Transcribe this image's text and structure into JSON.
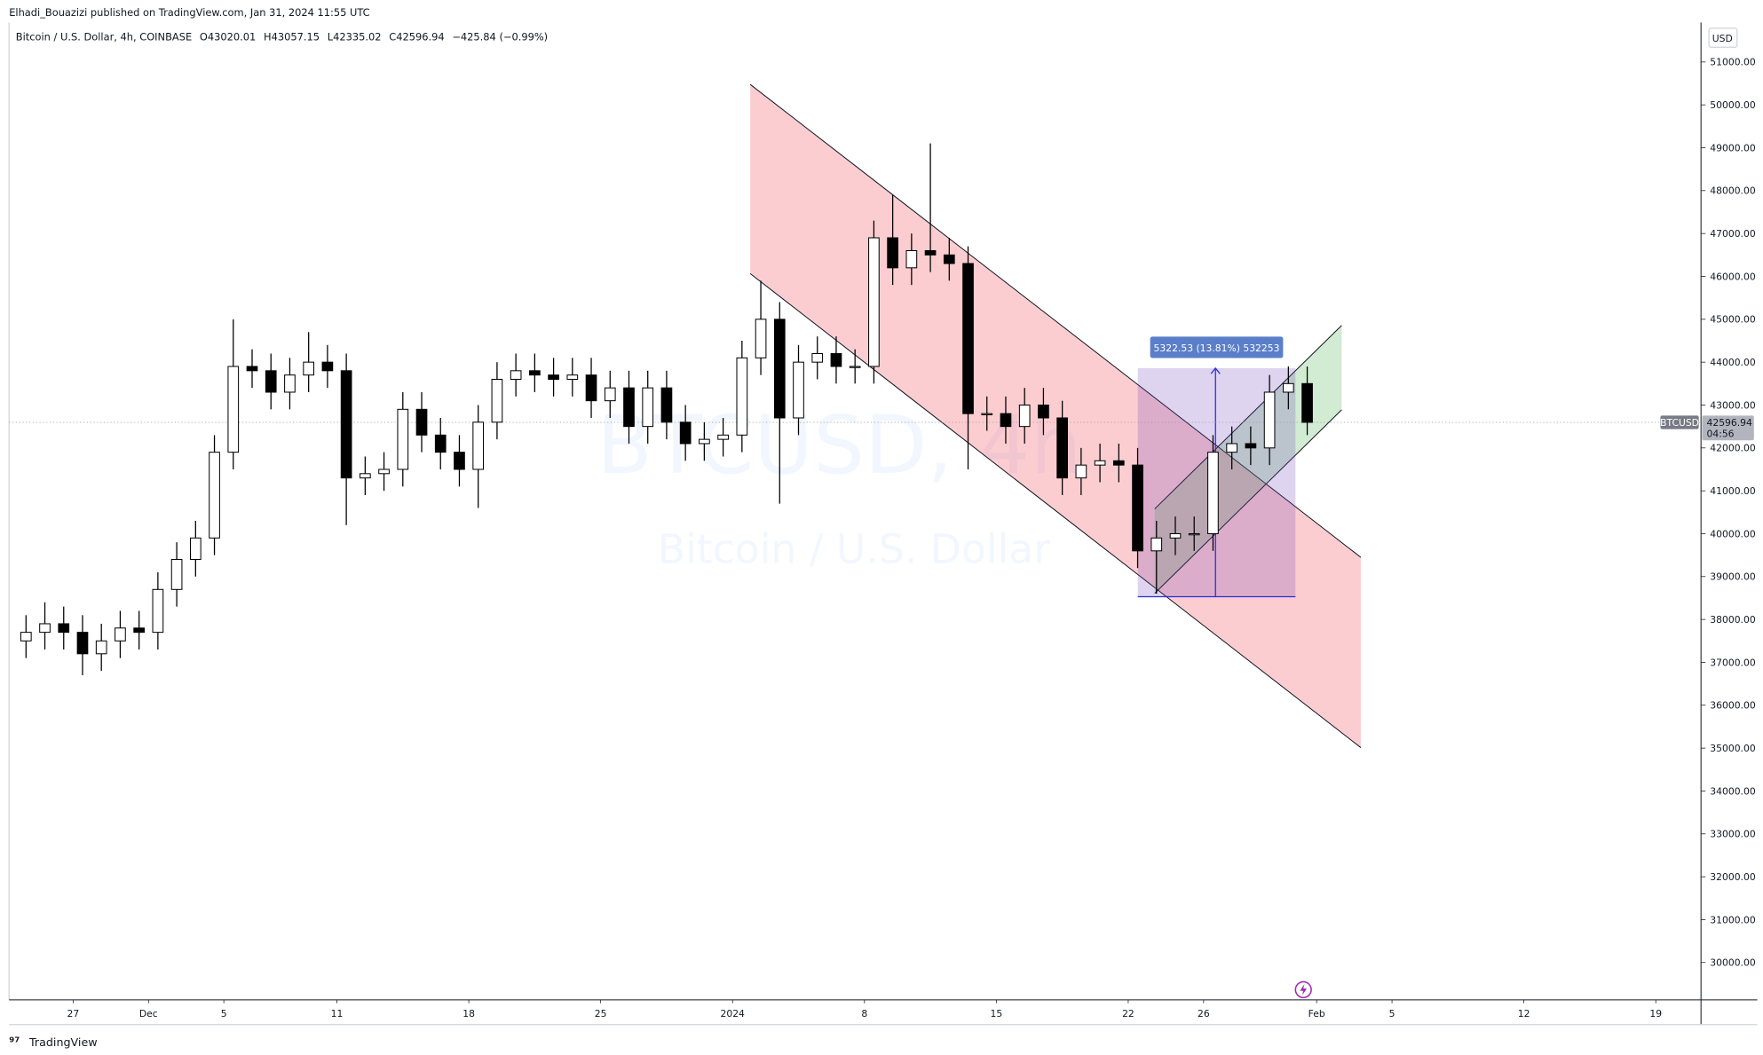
{
  "header": {
    "published": "Elhadi_Bouazizi published on TradingView.com, Jan 31, 2024 11:55 UTC",
    "symbol": "Bitcoin / U.S. Dollar, 4h, COINBASE",
    "open": "O43020.01",
    "high": "H43057.15",
    "low": "L42335.02",
    "close": "C42596.94",
    "change": "−425.84 (−0.99%)"
  },
  "watermark": {
    "ticker": "BTCUSD, 4h",
    "name": "Bitcoin / U.S. Dollar"
  },
  "currency": "USD",
  "measure_label": "5322.53 (13.81%) 532253",
  "price_label": {
    "symbol": "BTCUSD",
    "price": 42596.94,
    "countdown": "04:56"
  },
  "footer": "TradingView",
  "chart_data": {
    "type": "candlestick",
    "x": [
      -37.5,
      -36.5,
      -35.5,
      -34.5,
      -33.5,
      -32.5,
      -31.5,
      -30.5,
      -29.5,
      -28.5,
      -27.5,
      -26.5,
      -25.5,
      -24.5,
      -23.5,
      -22.5,
      -21.5,
      -20.5,
      -19.5,
      -18.5,
      -17.5,
      -16.5,
      -15.5,
      -14.5,
      -13.5,
      -12.5,
      -11.5,
      -10.5,
      -9.5,
      -8.5,
      -7.5,
      -6.5,
      -5.5,
      -4.5,
      -3.5,
      -2.5,
      -1.5,
      -0.5,
      0.5,
      1.5,
      2.5,
      3.5,
      4.5,
      5.5,
      6.5,
      7.5,
      8.5,
      9.5,
      10.5,
      11.5,
      12.5,
      13.5,
      14.5,
      15.5,
      16.5,
      17.5,
      18.5,
      19.5,
      20.5,
      21.5,
      22.5,
      23.5,
      24.5,
      25.5,
      26.5,
      27.5,
      28.5,
      29.5,
      30.5
    ],
    "open": [
      37500,
      37700,
      37900,
      37700,
      37200,
      37500,
      37800,
      37700,
      38700,
      39400,
      39900,
      41900,
      43900,
      43800,
      43300,
      43700,
      44000,
      43800,
      41300,
      41400,
      41500,
      42900,
      42300,
      41900,
      41500,
      42600,
      43600,
      43800,
      43700,
      43600,
      43700,
      43100,
      43400,
      42500,
      43400,
      42600,
      42100,
      42200,
      42300,
      44100,
      45000,
      42700,
      44000,
      44200,
      43900,
      43900,
      46900,
      46200,
      46600,
      46500,
      46300,
      42800,
      42800,
      42500,
      43000,
      42700,
      41300,
      41600,
      41700,
      41600,
      39600,
      39900,
      40000,
      40000,
      41900,
      42100,
      42000,
      43300,
      43500
    ],
    "high": [
      38100,
      38400,
      38300,
      38100,
      37900,
      38200,
      38200,
      39100,
      39800,
      40300,
      42300,
      45000,
      44300,
      44200,
      44100,
      44700,
      44400,
      44200,
      41800,
      41900,
      43300,
      43300,
      42700,
      42300,
      43000,
      44000,
      44200,
      44200,
      44100,
      44100,
      44100,
      43800,
      43800,
      43800,
      43800,
      43000,
      42600,
      42700,
      44500,
      45900,
      45400,
      44400,
      44600,
      44600,
      44300,
      47300,
      47900,
      47000,
      49100,
      46900,
      46700,
      43200,
      43200,
      43400,
      43400,
      43100,
      42000,
      42100,
      42100,
      42000,
      40300,
      40400,
      40400,
      42300,
      42500,
      42500,
      43700,
      43900,
      43900
    ],
    "low": [
      37100,
      37300,
      37300,
      36700,
      36800,
      37100,
      37300,
      37300,
      38300,
      39000,
      39500,
      41500,
      43400,
      42900,
      42900,
      43300,
      43400,
      40200,
      40900,
      41000,
      41100,
      41900,
      41500,
      41100,
      40600,
      42200,
      43200,
      43300,
      43200,
      43200,
      42700,
      42700,
      42100,
      42100,
      42200,
      41700,
      41700,
      41800,
      41900,
      43700,
      40700,
      42300,
      43600,
      43500,
      43500,
      43500,
      45800,
      45800,
      46100,
      45900,
      41500,
      42400,
      42100,
      42100,
      42300,
      40900,
      40900,
      41200,
      41200,
      39200,
      38600,
      39500,
      39600,
      39600,
      41500,
      41600,
      41600,
      42900,
      42300
    ],
    "close": [
      37700,
      37900,
      37700,
      37200,
      37500,
      37800,
      37700,
      38700,
      39400,
      39900,
      41900,
      43900,
      43800,
      43300,
      43700,
      44000,
      43800,
      41300,
      41400,
      41500,
      42900,
      42300,
      41900,
      41500,
      42600,
      43600,
      43800,
      43700,
      43600,
      43700,
      43100,
      43400,
      42500,
      43400,
      42600,
      42100,
      42200,
      42300,
      44100,
      45000,
      42700,
      44000,
      44200,
      43900,
      43900,
      46900,
      46200,
      46600,
      46500,
      46300,
      42800,
      42800,
      42500,
      43000,
      42700,
      41300,
      41600,
      41700,
      41600,
      39600,
      39900,
      40000,
      40000,
      41900,
      42100,
      42000,
      43300,
      43500,
      42597
    ],
    "up_color": "#ffffff",
    "down_color": "#000000",
    "edge_color": "#000000",
    "xlim": [
      -38.4,
      51.4
    ],
    "xticks": [
      {
        "value": -35,
        "label": "27"
      },
      {
        "value": -31,
        "label": "Dec"
      },
      {
        "value": -27,
        "label": "5"
      },
      {
        "value": -21,
        "label": "11"
      },
      {
        "value": -14,
        "label": "18"
      },
      {
        "value": -7,
        "label": "25"
      },
      {
        "value": 0,
        "label": "2024"
      },
      {
        "value": 7,
        "label": "8"
      },
      {
        "value": 14,
        "label": "15"
      },
      {
        "value": 21,
        "label": "22"
      },
      {
        "value": 25,
        "label": "26"
      },
      {
        "value": 31,
        "label": "Feb"
      },
      {
        "value": 35,
        "label": "5"
      },
      {
        "value": 42,
        "label": "12"
      },
      {
        "value": 49,
        "label": "19"
      }
    ],
    "ylim": [
      29130,
      51920
    ],
    "yticks": [
      {
        "value": 30000,
        "label": "30000.00"
      },
      {
        "value": 31000,
        "label": "31000.00"
      },
      {
        "value": 32000,
        "label": "32000.00"
      },
      {
        "value": 33000,
        "label": "33000.00"
      },
      {
        "value": 34000,
        "label": "34000.00"
      },
      {
        "value": 35000,
        "label": "35000.00"
      },
      {
        "value": 36000,
        "label": "36000.00"
      },
      {
        "value": 37000,
        "label": "37000.00"
      },
      {
        "value": 38000,
        "label": "38000.00"
      },
      {
        "value": 39000,
        "label": "39000.00"
      },
      {
        "value": 40000,
        "label": "40000.00"
      },
      {
        "value": 41000,
        "label": "41000.00"
      },
      {
        "value": 42000,
        "label": "42000.00"
      },
      {
        "value": 43000,
        "label": "43000.00"
      },
      {
        "value": 44000,
        "label": "44000.00"
      },
      {
        "value": 45000,
        "label": "45000.00"
      },
      {
        "value": 46000,
        "label": "46000.00"
      },
      {
        "value": 47000,
        "label": "47000.00"
      },
      {
        "value": 48000,
        "label": "48000.00"
      },
      {
        "value": 49000,
        "label": "49000.00"
      },
      {
        "value": 50000,
        "label": "50000.00"
      },
      {
        "value": 51000,
        "label": "51000.00"
      }
    ],
    "grid": false
  }
}
